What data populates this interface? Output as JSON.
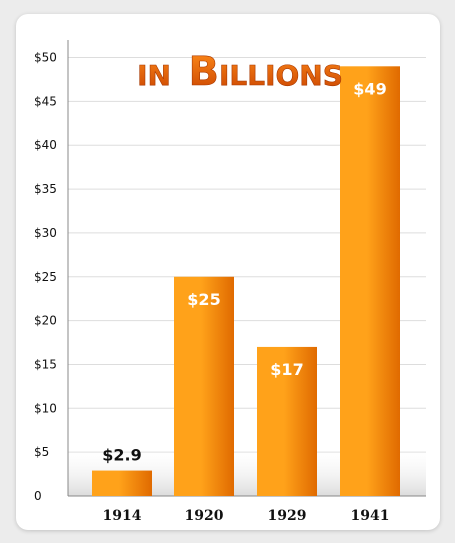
{
  "chart_data": {
    "type": "bar",
    "title_parts": [
      "in",
      "Billions"
    ],
    "categories": [
      "1914",
      "1920",
      "1929",
      "1941"
    ],
    "values": [
      2.9,
      25,
      17,
      49
    ],
    "data_labels": [
      "$2.9",
      "$25",
      "$17",
      "$49"
    ],
    "y_tick_values": [
      0,
      5,
      10,
      15,
      20,
      25,
      30,
      35,
      40,
      45,
      50
    ],
    "y_tick_labels": [
      "0",
      "$5",
      "$10",
      "$15",
      "$20",
      "$25",
      "$30",
      "$35",
      "$40",
      "$45",
      "$50"
    ],
    "ylim": [
      0,
      52
    ],
    "grid": true,
    "legend": "none",
    "xlabel": "",
    "ylabel": "",
    "colors": {
      "bar_light": "#ffa21a",
      "bar_dark": "#e06a00",
      "title_light": "#ff8c1a",
      "title_dark": "#c84200",
      "grid": "#dddddd",
      "axis": "#888888"
    }
  }
}
